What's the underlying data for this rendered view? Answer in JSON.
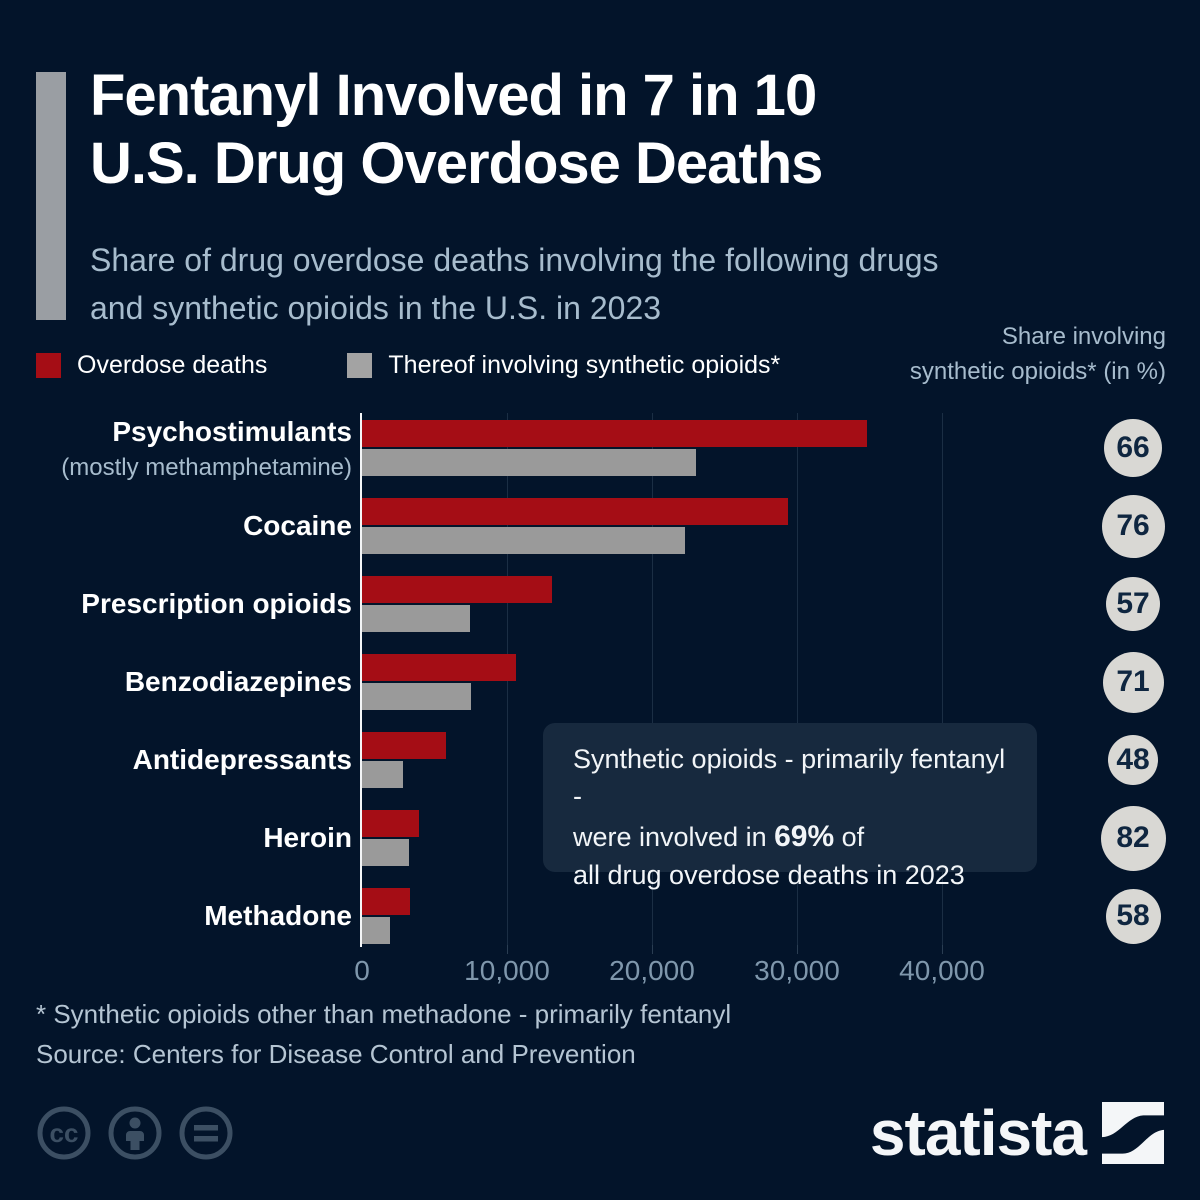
{
  "header": {
    "title_line1": "Fentanyl Involved in 7 in 10",
    "title_line2": "U.S. Drug Overdose Deaths",
    "subtitle_line1": "Share of drug overdose deaths involving the following drugs",
    "subtitle_line2": "and synthetic opioids in the U.S. in 2023"
  },
  "legend": {
    "overdose_label": "Overdose deaths",
    "synthetic_label": "Thereof involving synthetic opioids*"
  },
  "right_header": {
    "line1": "Share involving",
    "line2": "synthetic opioids* (in %)"
  },
  "annotation": {
    "line1": "Synthetic opioids - primarily fentanyl -",
    "line2_pre": "were involved in ",
    "line2_bold": "69%",
    "line2_post": " of",
    "line3": "all drug overdose deaths in 2023"
  },
  "footer": {
    "footnote": "* Synthetic opioids other than methadone - primarily fentanyl",
    "source": "Source: Centers for Disease Control and Prevention",
    "brand": "statista",
    "cc_icons": [
      "cc-icon",
      "attribution-person-icon",
      "no-derivatives-equals-icon"
    ]
  },
  "colors": {
    "background": "#03142a",
    "bar_red": "#a50d15",
    "bar_gray": "#9a9a9a",
    "accent_bar_gray": "#9a9ea3",
    "badge_bg": "#d9d8d4",
    "badge_text": "#0f2640",
    "subtitle_text": "#a7bccd",
    "axis_label": "#7f97ac",
    "gridline": "#1b2e44",
    "annotation_bg": "#17293e",
    "icon_muted": "#3c4f63"
  },
  "chart_data": {
    "type": "bar",
    "orientation": "horizontal",
    "title": "Share of drug overdose deaths involving the following drugs and synthetic opioids in the U.S. in 2023",
    "categories": [
      "Psychostimulants",
      "Cocaine",
      "Prescription opioids",
      "Benzodiazepines",
      "Antidepressants",
      "Heroin",
      "Methadone"
    ],
    "category_subtitles": [
      "(mostly methamphetamine)",
      "",
      "",
      "",
      "",
      "",
      ""
    ],
    "series": [
      {
        "name": "Overdose deaths",
        "color": "#a50d15",
        "values": [
          34800,
          29400,
          13100,
          10600,
          5800,
          3950,
          3300
        ]
      },
      {
        "name": "Thereof involving synthetic opioids*",
        "color": "#9a9a9a",
        "values": [
          23000,
          22300,
          7450,
          7500,
          2800,
          3250,
          1900
        ]
      }
    ],
    "share_badges": {
      "label": "Share involving synthetic opioids* (in %)",
      "values": [
        66,
        76,
        57,
        71,
        48,
        82,
        58
      ]
    },
    "xlabel": "",
    "ylabel": "",
    "xlim": [
      0,
      40000
    ],
    "x_ticks": [
      {
        "value": 0,
        "label": "0"
      },
      {
        "value": 10000,
        "label": "10,000"
      },
      {
        "value": 20000,
        "label": "20,000"
      },
      {
        "value": 30000,
        "label": "30,000"
      },
      {
        "value": 40000,
        "label": "40,000"
      }
    ],
    "grid": true,
    "legend_position": "top-left"
  }
}
